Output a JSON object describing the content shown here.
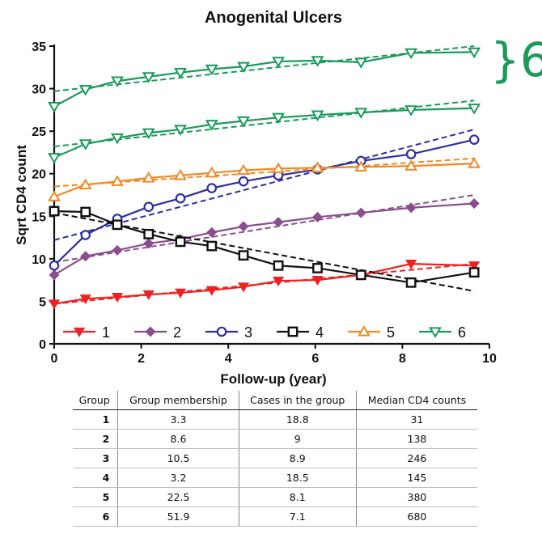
{
  "chart_data": {
    "type": "line",
    "title": "Anogenital Ulcers",
    "xlabel": "Follow-up (year)",
    "ylabel": "Sqrt CD4 count",
    "xlim": [
      0,
      10
    ],
    "ylim": [
      0,
      35
    ],
    "xticks": [
      "0",
      "2",
      "4",
      "6",
      "8",
      "10"
    ],
    "yticks": [
      "0",
      "5",
      "10",
      "15",
      "20",
      "25",
      "30",
      "35"
    ],
    "legend_position": "bottom-left",
    "annotation": "}6",
    "x": [
      0,
      0.72,
      1.45,
      2.17,
      2.9,
      3.62,
      4.35,
      5.15,
      6.05,
      7.05,
      8.2,
      9.65
    ],
    "series": [
      {
        "name": "1",
        "color": "#ee2222",
        "marker": "triangle-down-filled",
        "values": [
          4.7,
          5.3,
          5.5,
          5.8,
          6.0,
          6.3,
          6.7,
          7.4,
          7.5,
          8.1,
          9.4,
          9.2
        ],
        "trend": [
          [
            0,
            4.7
          ],
          [
            9.65,
            9.4
          ]
        ]
      },
      {
        "name": "2",
        "color": "#8a4e8e",
        "marker": "diamond-filled",
        "values": [
          8.1,
          10.3,
          11.0,
          11.8,
          12.3,
          13.1,
          13.8,
          14.3,
          14.9,
          15.4,
          16.0,
          16.5
        ],
        "trend": [
          [
            0,
            9.6
          ],
          [
            9.65,
            17.5
          ]
        ]
      },
      {
        "name": "3",
        "color": "#2e2e9e",
        "marker": "circle-open",
        "values": [
          9.2,
          12.8,
          14.7,
          16.1,
          17.1,
          18.3,
          19.1,
          19.8,
          20.5,
          21.5,
          22.3,
          24.0
        ],
        "trend": [
          [
            0,
            12.2
          ],
          [
            9.65,
            25.2
          ]
        ]
      },
      {
        "name": "4",
        "color": "#111111",
        "marker": "square-open",
        "values": [
          15.6,
          15.5,
          14.0,
          12.9,
          12.0,
          11.5,
          10.4,
          9.2,
          8.9,
          8.1,
          7.2,
          8.4
        ],
        "trend": [
          [
            0,
            15.4
          ],
          [
            9.65,
            6.2
          ]
        ]
      },
      {
        "name": "5",
        "color": "#f08a24",
        "marker": "triangle-up-open",
        "values": [
          17.3,
          18.7,
          19.1,
          19.5,
          19.8,
          20.1,
          20.4,
          20.6,
          20.7,
          20.8,
          20.9,
          21.2
        ],
        "trend": [
          [
            0,
            18.5
          ],
          [
            9.65,
            21.8
          ]
        ]
      },
      {
        "name": "6",
        "color": "#1a9b5a",
        "marker": "triangle-down-open",
        "values": [
          27.9,
          29.9,
          30.9,
          31.4,
          31.9,
          32.3,
          32.6,
          33.2,
          33.3,
          33.1,
          34.2,
          34.3
        ],
        "trend": [
          [
            0,
            29.7
          ],
          [
            9.65,
            35.0
          ]
        ]
      },
      {
        "name": "6",
        "color": "#1a9b5a",
        "marker": "triangle-down-open",
        "values": [
          21.9,
          23.5,
          24.2,
          24.8,
          25.2,
          25.8,
          26.2,
          26.6,
          26.9,
          27.2,
          27.5,
          27.7
        ],
        "trend": [
          [
            0,
            23.2
          ],
          [
            9.65,
            28.6
          ]
        ]
      }
    ]
  },
  "table": {
    "headers": [
      "Group",
      "Group membership",
      "Cases in the group",
      "Median CD4 counts"
    ],
    "rows": [
      [
        "1",
        "3.3",
        "18.8",
        "31"
      ],
      [
        "2",
        "8.6",
        "9",
        "138"
      ],
      [
        "3",
        "10.5",
        "8.9",
        "246"
      ],
      [
        "4",
        "3.2",
        "18.5",
        "145"
      ],
      [
        "5",
        "22.5",
        "8.1",
        "380"
      ],
      [
        "6",
        "51.9",
        "7.1",
        "680"
      ]
    ]
  }
}
